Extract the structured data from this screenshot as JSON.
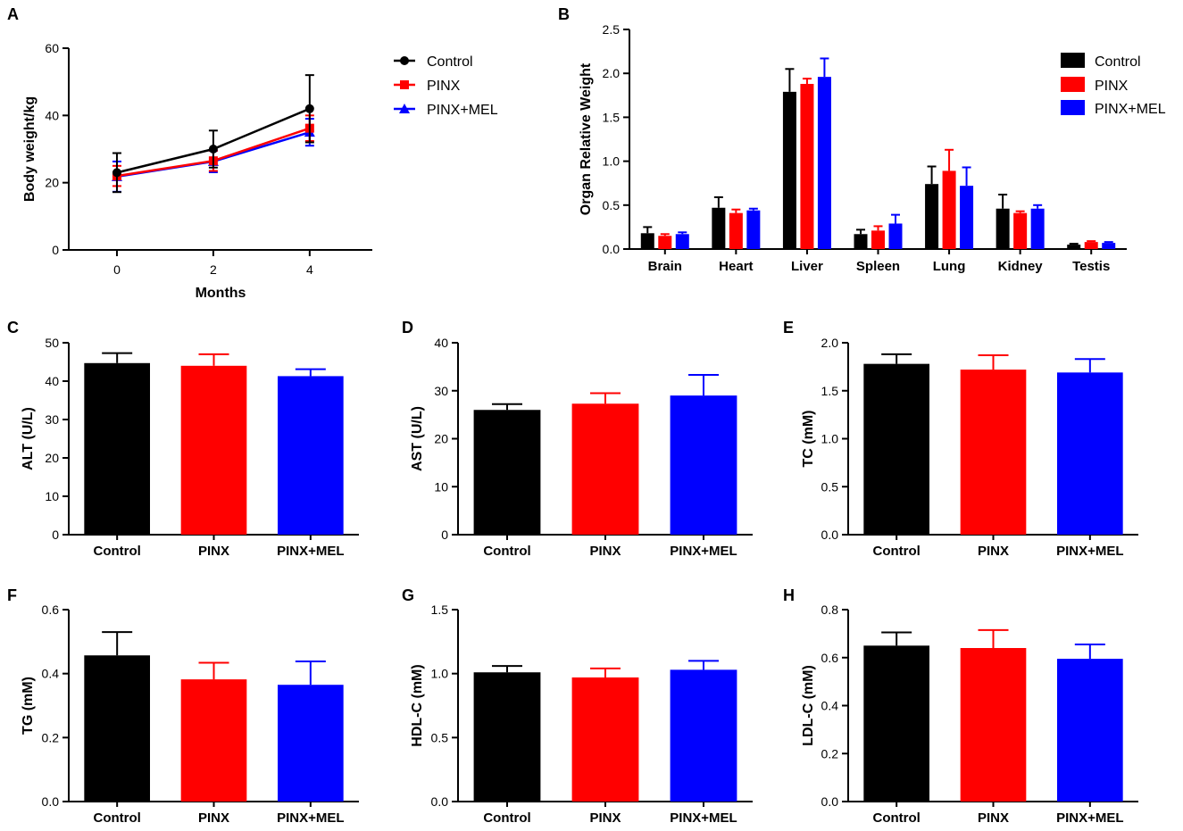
{
  "series_colors": {
    "Control": "#000000",
    "PINX": "#ff0000",
    "PINX+MEL": "#0000ff"
  },
  "chart_data": [
    {
      "id": "A",
      "type": "line",
      "letter": "A",
      "x": [
        0,
        2,
        4
      ],
      "xticks": [
        "0",
        "2",
        "4"
      ],
      "xlim": [
        -1,
        5.3
      ],
      "xlabel": "Months",
      "ylabel": "Body weight/kg",
      "ylim": [
        0,
        60
      ],
      "yticks": [
        0,
        20,
        40,
        60
      ],
      "ytick_labels": [
        "0",
        "20",
        "40",
        "60"
      ],
      "legend": "top-right",
      "series": [
        {
          "name": "Control",
          "values": [
            23,
            30,
            42
          ],
          "errors": [
            5.8,
            5.5,
            10
          ]
        },
        {
          "name": "PINX",
          "values": [
            22,
            26.5,
            36.2
          ],
          "errors": [
            3,
            3,
            3.8
          ]
        },
        {
          "name": "PINX+MEL",
          "values": [
            21.8,
            26.3,
            35
          ],
          "errors": [
            4.5,
            3.2,
            4
          ]
        }
      ]
    },
    {
      "id": "B",
      "type": "bar",
      "letter": "B",
      "categories": [
        "Brain",
        "Heart",
        "Liver",
        "Spleen",
        "Lung",
        "Kidney",
        "Testis"
      ],
      "ylabel": "Organ Relative Weight",
      "ylim": [
        0,
        2.5
      ],
      "yticks": [
        0,
        0.5,
        1,
        1.5,
        2,
        2.5
      ],
      "ytick_labels": [
        "0.0",
        "0.5",
        "1.0",
        "1.5",
        "2.0",
        "2.5"
      ],
      "legend": "top-right",
      "series": [
        {
          "name": "Control",
          "values": [
            0.18,
            0.47,
            1.79,
            0.17,
            0.74,
            0.46,
            0.05
          ],
          "errors": [
            0.07,
            0.12,
            0.26,
            0.05,
            0.2,
            0.16,
            0.01
          ]
        },
        {
          "name": "PINX",
          "values": [
            0.15,
            0.41,
            1.88,
            0.21,
            0.89,
            0.41,
            0.08
          ],
          "errors": [
            0.02,
            0.04,
            0.06,
            0.05,
            0.24,
            0.02,
            0.01
          ]
        },
        {
          "name": "PINX+MEL",
          "values": [
            0.17,
            0.44,
            1.96,
            0.29,
            0.72,
            0.46,
            0.07
          ],
          "errors": [
            0.02,
            0.02,
            0.21,
            0.1,
            0.21,
            0.04,
            0.01
          ]
        }
      ]
    },
    {
      "id": "C",
      "type": "bar",
      "letter": "C",
      "categories": [
        "Control",
        "PINX",
        "PINX+MEL"
      ],
      "values": [
        44.7,
        44,
        41.3
      ],
      "errors": [
        2.6,
        3,
        1.8
      ],
      "ylabel": "ALT (U/L)",
      "ylim": [
        0,
        50
      ],
      "yticks": [
        0,
        10,
        20,
        30,
        40,
        50
      ],
      "ytick_labels": [
        "0",
        "10",
        "20",
        "30",
        "40",
        "50"
      ]
    },
    {
      "id": "D",
      "type": "bar",
      "letter": "D",
      "categories": [
        "Control",
        "PINX",
        "PINX+MEL"
      ],
      "values": [
        26,
        27.3,
        29
      ],
      "errors": [
        1.2,
        2.2,
        4.3
      ],
      "ylabel": "AST (U/L)",
      "ylim": [
        0,
        40
      ],
      "yticks": [
        0,
        10,
        20,
        30,
        40
      ],
      "ytick_labels": [
        "0",
        "10",
        "20",
        "30",
        "40"
      ]
    },
    {
      "id": "E",
      "type": "bar",
      "letter": "E",
      "categories": [
        "Control",
        "PINX",
        "PINX+MEL"
      ],
      "values": [
        1.78,
        1.72,
        1.69
      ],
      "errors": [
        0.1,
        0.15,
        0.14
      ],
      "ylabel": "TC (mM)",
      "ylim": [
        0,
        2
      ],
      "yticks": [
        0,
        0.5,
        1,
        1.5,
        2
      ],
      "ytick_labels": [
        "0.0",
        "0.5",
        "1.0",
        "1.5",
        "2.0"
      ]
    },
    {
      "id": "F",
      "type": "bar",
      "letter": "F",
      "categories": [
        "Control",
        "PINX",
        "PINX+MEL"
      ],
      "values": [
        0.457,
        0.382,
        0.365
      ],
      "errors": [
        0.073,
        0.052,
        0.073
      ],
      "ylabel": "TG (mM)",
      "ylim": [
        0,
        0.6
      ],
      "yticks": [
        0,
        0.2,
        0.4,
        0.6
      ],
      "ytick_labels": [
        "0.0",
        "0.2",
        "0.4",
        "0.6"
      ]
    },
    {
      "id": "G",
      "type": "bar",
      "letter": "G",
      "categories": [
        "Control",
        "PINX",
        "PINX+MEL"
      ],
      "values": [
        1.01,
        0.97,
        1.03
      ],
      "errors": [
        0.05,
        0.07,
        0.07
      ],
      "ylabel": "HDL-C (mM)",
      "ylim": [
        0,
        1.5
      ],
      "yticks": [
        0,
        0.5,
        1,
        1.5
      ],
      "ytick_labels": [
        "0.0",
        "0.5",
        "1.0",
        "1.5"
      ]
    },
    {
      "id": "H",
      "type": "bar",
      "letter": "H",
      "categories": [
        "Control",
        "PINX",
        "PINX+MEL"
      ],
      "values": [
        0.65,
        0.64,
        0.595
      ],
      "errors": [
        0.055,
        0.075,
        0.06
      ],
      "ylabel": "LDL-C (mM)",
      "ylim": [
        0,
        0.8
      ],
      "yticks": [
        0,
        0.2,
        0.4,
        0.6,
        0.8
      ],
      "ytick_labels": [
        "0.0",
        "0.2",
        "0.4",
        "0.6",
        "0.8"
      ]
    }
  ]
}
